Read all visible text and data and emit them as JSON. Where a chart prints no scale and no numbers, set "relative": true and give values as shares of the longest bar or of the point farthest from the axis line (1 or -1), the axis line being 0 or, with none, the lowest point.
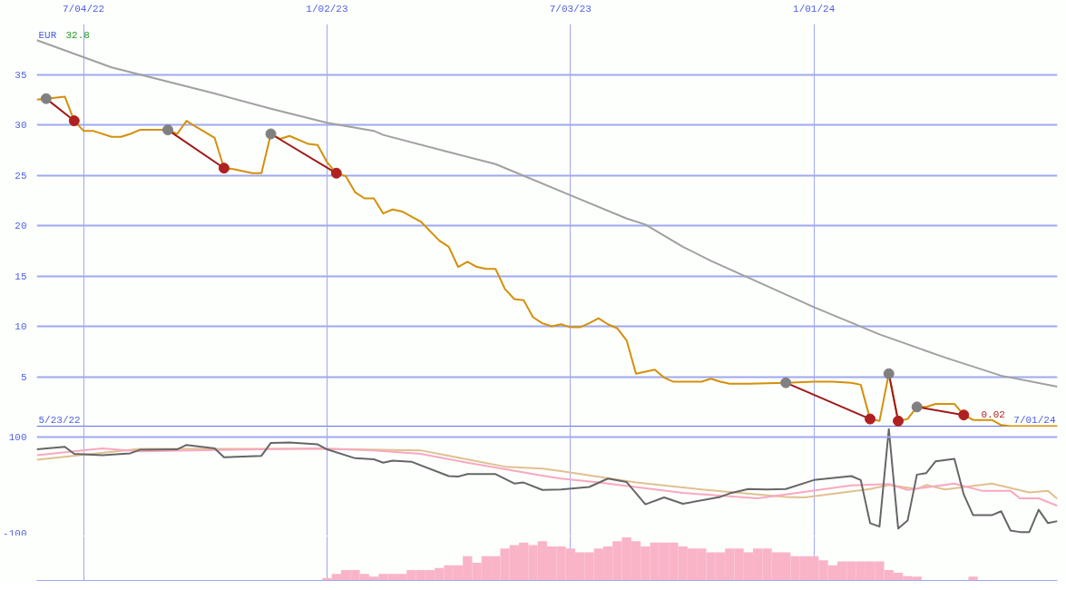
{
  "chart_data": [
    {
      "type": "line",
      "xlim": [
        "2022-05-30",
        "2024-07-01"
      ],
      "ylim": [
        0,
        40
      ],
      "xticks": [
        {
          "value": "2022-07-04",
          "label": "7/04/22"
        },
        {
          "value": "2023-01-02",
          "label": "1/02/23"
        },
        {
          "value": "2023-07-03",
          "label": "7/03/23"
        },
        {
          "value": "2024-01-01",
          "label": "1/01/24"
        }
      ],
      "yticks": [
        {
          "value": 0,
          "label": null
        },
        5,
        10,
        15,
        20,
        25,
        30,
        35
      ],
      "grid": true,
      "annotations": [
        "EUR",
        "32.8",
        "5/23/22",
        {
          "text": "0.02",
          "x": "2024-05-27",
          "y": 0.1
        },
        "7/01/24"
      ],
      "series": [
        {
          "color": "#a0a0a0",
          "x": [
            "2022-05-30",
            "2022-07-25",
            "2022-10-10",
            "2022-11-21",
            "2023-01-02",
            "2023-02-06",
            "2023-02-13",
            "2023-04-03",
            "2023-05-08",
            "2023-07-03",
            "2023-08-14",
            "2023-08-28",
            "2023-09-25",
            "2023-10-16",
            "2024-01-01",
            "2024-02-19",
            "2024-04-08",
            "2024-05-20",
            "2024-07-01"
          ],
          "values": [
            38.4,
            35.7,
            33.1,
            31.6,
            30.2,
            29.4,
            29.0,
            27.3,
            26.1,
            23.0,
            20.7,
            20.1,
            17.9,
            16.5,
            11.9,
            9.2,
            6.9,
            5.1,
            4.0
          ]
        },
        {
          "color": "#d4900a",
          "x": [
            "2022-05-30",
            "2022-06-06",
            "2022-06-20",
            "2022-06-27",
            "2022-07-04",
            "2022-07-11",
            "2022-07-25",
            "2022-08-01",
            "2022-08-08",
            "2022-08-15",
            "2022-09-05",
            "2022-09-12",
            "2022-09-19",
            "2022-09-26",
            "2022-10-10",
            "2022-10-17",
            "2022-10-24",
            "2022-11-07",
            "2022-11-14",
            "2022-11-21",
            "2022-11-28",
            "2022-12-05",
            "2022-12-19",
            "2022-12-26",
            "2023-01-02",
            "2023-01-09",
            "2023-01-16",
            "2023-01-23",
            "2023-01-30",
            "2023-02-06",
            "2023-02-13",
            "2023-02-20",
            "2023-02-27",
            "2023-03-13",
            "2023-03-27",
            "2023-04-03",
            "2023-04-10",
            "2023-04-17",
            "2023-04-24",
            "2023-05-01",
            "2023-05-08",
            "2023-05-15",
            "2023-05-22",
            "2023-05-29",
            "2023-06-05",
            "2023-06-12",
            "2023-06-19",
            "2023-06-26",
            "2023-07-03",
            "2023-07-10",
            "2023-07-17",
            "2023-07-24",
            "2023-07-31",
            "2023-08-07",
            "2023-08-14",
            "2023-08-21",
            "2023-09-04",
            "2023-09-11",
            "2023-09-18",
            "2023-10-09",
            "2023-10-16",
            "2023-10-23",
            "2023-10-30",
            "2023-11-13",
            "2023-12-11",
            "2024-01-01",
            "2024-01-15",
            "2024-01-29",
            "2024-02-05",
            "2024-02-12",
            "2024-02-19",
            "2024-02-26",
            "2024-03-04",
            "2024-03-11",
            "2024-03-18",
            "2024-03-25",
            "2024-04-01",
            "2024-04-15",
            "2024-04-22",
            "2024-04-29",
            "2024-05-13",
            "2024-05-20",
            "2024-05-27",
            "2024-07-01"
          ],
          "values": [
            32.5,
            32.6,
            32.8,
            30.4,
            29.4,
            29.4,
            28.8,
            28.8,
            29.1,
            29.5,
            29.5,
            29.1,
            30.4,
            29.8,
            28.7,
            25.7,
            25.6,
            25.2,
            25.2,
            29.1,
            28.6,
            28.9,
            28.1,
            28.0,
            26.3,
            25.2,
            24.9,
            23.3,
            22.7,
            22.7,
            21.2,
            21.6,
            21.4,
            20.4,
            18.5,
            17.9,
            15.9,
            16.4,
            15.9,
            15.7,
            15.7,
            13.7,
            12.7,
            12.6,
            10.9,
            10.3,
            10.0,
            10.2,
            9.9,
            9.9,
            10.3,
            10.8,
            10.2,
            9.8,
            8.6,
            5.3,
            5.7,
            4.9,
            4.5,
            4.5,
            4.8,
            4.5,
            4.3,
            4.3,
            4.4,
            4.5,
            4.5,
            4.4,
            4.2,
            0.8,
            0.6,
            5.3,
            0.6,
            0.8,
            2.0,
            2.0,
            2.3,
            2.3,
            1.2,
            0.7,
            0.7,
            0.2,
            0.1,
            0.1
          ]
        },
        {
          "color": "#a01818",
          "x": [
            "2022-06-06",
            "2022-06-27"
          ],
          "values": [
            32.6,
            30.4
          ]
        },
        {
          "color": "#a01818",
          "x": [
            "2022-09-05",
            "2022-10-17"
          ],
          "values": [
            29.5,
            25.7
          ]
        },
        {
          "color": "#a01818",
          "x": [
            "2022-11-21",
            "2023-01-09"
          ],
          "values": [
            29.1,
            25.2
          ]
        },
        {
          "color": "#a01818",
          "x": [
            "2023-12-11",
            "2024-02-12"
          ],
          "values": [
            4.4,
            0.8
          ]
        },
        {
          "color": "#a01818",
          "x": [
            "2024-02-26",
            "2024-03-04"
          ],
          "values": [
            5.3,
            0.6
          ]
        },
        {
          "color": "#a01818",
          "x": [
            "2024-03-18",
            "2024-04-22"
          ],
          "values": [
            2.0,
            1.2
          ]
        },
        {
          "type": "scatter",
          "marker": "circle",
          "color": "#808080",
          "x": [
            "2022-06-06",
            "2022-09-05",
            "2022-11-21",
            "2023-12-11",
            "2024-02-26",
            "2024-03-18"
          ],
          "values": [
            32.6,
            29.5,
            29.1,
            4.4,
            5.3,
            2.0
          ]
        },
        {
          "type": "scatter",
          "marker": "circle",
          "color": "#b02020",
          "x": [
            "2022-06-27",
            "2022-10-17",
            "2023-01-09",
            "2024-02-12",
            "2024-03-04",
            "2024-04-22"
          ],
          "values": [
            30.4,
            25.7,
            25.2,
            0.8,
            0.6,
            1.2
          ]
        }
      ]
    },
    {
      "type": "line",
      "xlim": [
        "2022-05-30",
        "2024-07-01"
      ],
      "ylim": [
        -100,
        120
      ],
      "xticks": [
        {
          "value": "2022-07-04",
          "label": null
        },
        {
          "value": "2023-01-02",
          "label": null
        },
        {
          "value": "2023-07-03",
          "label": null
        },
        {
          "value": "2024-01-01",
          "label": null
        }
      ],
      "yticks": [
        100,
        -100
      ],
      "grid": "x",
      "tick_labels": "y",
      "ref_lines": [
        {
          "axis": "y",
          "value": 100
        }
      ],
      "series": [
        {
          "color": "#e0c090",
          "x": [
            "2022-05-30",
            "2022-08-15",
            "2023-01-02",
            "2023-03-13",
            "2023-05-15",
            "2023-06-12",
            "2023-06-26",
            "2023-08-21",
            "2023-10-09",
            "2023-12-11",
            "2023-12-25",
            "2024-02-12",
            "2024-02-26",
            "2024-03-18",
            "2024-03-25",
            "2024-04-08",
            "2024-05-13",
            "2024-06-10",
            "2024-06-24",
            "2024-07-01"
          ],
          "values": [
            54,
            76,
            76,
            73,
            40,
            36,
            31,
            8,
            -6,
            -21,
            -22,
            -5,
            3,
            -5,
            3,
            -6,
            6,
            -12,
            -9,
            -25
          ]
        },
        {
          "color": "#f9a8c0",
          "x": [
            "2022-05-30",
            "2022-07-18",
            "2022-08-15",
            "2022-12-26",
            "2023-02-06",
            "2023-03-13",
            "2023-04-17",
            "2023-06-12",
            "2023-06-26",
            "2023-07-24",
            "2023-09-25",
            "2023-11-20",
            "2024-01-29",
            "2024-02-26",
            "2024-03-11",
            "2024-04-15",
            "2024-05-06",
            "2024-05-27",
            "2024-06-03",
            "2024-06-17",
            "2024-07-01"
          ],
          "values": [
            63,
            77,
            71,
            77,
            73,
            66,
            48,
            22,
            16,
            8,
            -13,
            -24,
            2,
            5,
            -7,
            6,
            -9,
            -9,
            -24,
            -24,
            -39
          ]
        },
        {
          "color": "#666666",
          "x": [
            "2022-05-30",
            "2022-06-20",
            "2022-06-27",
            "2022-07-18",
            "2022-08-08",
            "2022-08-15",
            "2022-09-12",
            "2022-09-19",
            "2022-10-10",
            "2022-10-17",
            "2022-11-14",
            "2022-11-21",
            "2022-12-05",
            "2022-12-26",
            "2023-01-02",
            "2023-01-23",
            "2023-02-06",
            "2023-02-13",
            "2023-02-20",
            "2023-03-06",
            "2023-04-03",
            "2023-04-10",
            "2023-04-17",
            "2023-05-08",
            "2023-05-22",
            "2023-05-29",
            "2023-06-12",
            "2023-06-26",
            "2023-07-17",
            "2023-07-31",
            "2023-08-14",
            "2023-08-28",
            "2023-09-11",
            "2023-09-25",
            "2023-10-23",
            "2023-10-30",
            "2023-11-13",
            "2023-11-27",
            "2023-12-11",
            "2024-01-01",
            "2024-01-29",
            "2024-02-05",
            "2024-02-12",
            "2024-02-19",
            "2024-02-26",
            "2024-03-04",
            "2024-03-11",
            "2024-03-18",
            "2024-03-25",
            "2024-04-01",
            "2024-04-15",
            "2024-04-22",
            "2024-04-29",
            "2024-05-13",
            "2024-05-20",
            "2024-05-27",
            "2024-06-03",
            "2024-06-10",
            "2024-06-17",
            "2024-06-24",
            "2024-07-01"
          ],
          "values": [
            75,
            80,
            66,
            63,
            67,
            74,
            75,
            84,
            77,
            59,
            62,
            88,
            89,
            85,
            75,
            57,
            55,
            48,
            52,
            50,
            21,
            20,
            25,
            25,
            6,
            8,
            -7,
            -6,
            -1,
            16,
            9,
            -36,
            -22,
            -35,
            -21,
            -14,
            -5,
            -6,
            -5,
            13,
            21,
            13,
            -74,
            -81,
            116,
            -85,
            -69,
            24,
            27,
            51,
            56,
            -16,
            -58,
            -58,
            -50,
            -89,
            -92,
            -92,
            -47,
            -74,
            -70
          ]
        }
      ]
    },
    {
      "type": "bar",
      "relative": true,
      "xlim": [
        "2022-05-30",
        "2024-07-01"
      ],
      "xticks": [
        {
          "value": "2022-07-04",
          "label": null
        },
        {
          "value": "2023-01-02",
          "label": null
        },
        {
          "value": "2023-07-03",
          "label": null
        },
        {
          "value": "2024-01-01",
          "label": null
        }
      ],
      "grid": "x",
      "tick_labels": false,
      "series": [
        {
          "color": "#f9b4c8",
          "x": [
            "2023-01-02",
            "2023-01-09",
            "2023-01-16",
            "2023-01-23",
            "2023-01-30",
            "2023-02-06",
            "2023-02-13",
            "2023-02-20",
            "2023-02-27",
            "2023-03-06",
            "2023-03-13",
            "2023-03-20",
            "2023-03-27",
            "2023-04-03",
            "2023-04-10",
            "2023-04-17",
            "2023-04-24",
            "2023-05-01",
            "2023-05-08",
            "2023-05-15",
            "2023-05-22",
            "2023-05-29",
            "2023-06-05",
            "2023-06-12",
            "2023-06-19",
            "2023-06-26",
            "2023-07-03",
            "2023-07-10",
            "2023-07-17",
            "2023-07-24",
            "2023-07-31",
            "2023-08-07",
            "2023-08-14",
            "2023-08-21",
            "2023-08-28",
            "2023-09-04",
            "2023-09-11",
            "2023-09-18",
            "2023-09-25",
            "2023-10-02",
            "2023-10-09",
            "2023-10-16",
            "2023-10-23",
            "2023-10-30",
            "2023-11-06",
            "2023-11-13",
            "2023-11-20",
            "2023-11-27",
            "2023-12-04",
            "2023-12-11",
            "2023-12-18",
            "2023-12-25",
            "2024-01-01",
            "2024-01-08",
            "2024-01-15",
            "2024-01-22",
            "2024-01-29",
            "2024-02-05",
            "2024-02-12",
            "2024-02-19",
            "2024-02-26",
            "2024-03-04",
            "2024-03-11",
            "2024-03-18",
            "2024-04-29"
          ],
          "values": [
            0.06,
            0.15,
            0.24,
            0.24,
            0.15,
            0.09,
            0.15,
            0.15,
            0.15,
            0.24,
            0.24,
            0.24,
            0.29,
            0.35,
            0.35,
            0.56,
            0.41,
            0.56,
            0.56,
            0.74,
            0.82,
            0.88,
            0.82,
            0.91,
            0.79,
            0.79,
            0.74,
            0.65,
            0.65,
            0.74,
            0.79,
            0.91,
            1,
            0.91,
            0.79,
            0.88,
            0.88,
            0.88,
            0.79,
            0.74,
            0.74,
            0.65,
            0.65,
            0.74,
            0.74,
            0.65,
            0.74,
            0.74,
            0.65,
            0.65,
            0.56,
            0.56,
            0.56,
            0.47,
            0.35,
            0.44,
            0.44,
            0.44,
            0.44,
            0.44,
            0.24,
            0.18,
            0.1,
            0.09,
            0.09
          ]
        }
      ]
    }
  ]
}
